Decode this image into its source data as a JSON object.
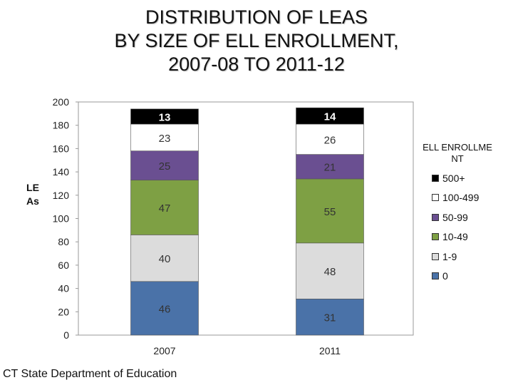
{
  "title_lines": [
    "DISTRIBUTION OF LEAS",
    "BY SIZE OF ELL ENROLLMENT,",
    "2007-08 TO 2011-12"
  ],
  "footer": "CT State Department of Education",
  "colors": {
    "0": "#4a72a8",
    "1-9": "#dcdcdc",
    "10-49": "#7ea044",
    "50-99": "#6a4f91",
    "100-499": "#ffffff",
    "500+": "#000000"
  },
  "chart_data": {
    "type": "bar",
    "stacked": true,
    "categories": [
      "2007",
      "2011"
    ],
    "ylabel": "LEAs",
    "ylim": [
      0,
      200
    ],
    "yticks": [
      0,
      20,
      40,
      60,
      80,
      100,
      120,
      140,
      160,
      180,
      200
    ],
    "legend_title": "ELL ENROLLMENT",
    "legend_position": "right",
    "grid": false,
    "series": [
      {
        "name": "0",
        "values": [
          46,
          31
        ]
      },
      {
        "name": "1-9",
        "values": [
          40,
          48
        ]
      },
      {
        "name": "10-49",
        "values": [
          47,
          55
        ]
      },
      {
        "name": "50-99",
        "values": [
          25,
          21
        ]
      },
      {
        "name": "100-499",
        "values": [
          23,
          26
        ]
      },
      {
        "name": "500+",
        "values": [
          13,
          14
        ]
      }
    ]
  }
}
